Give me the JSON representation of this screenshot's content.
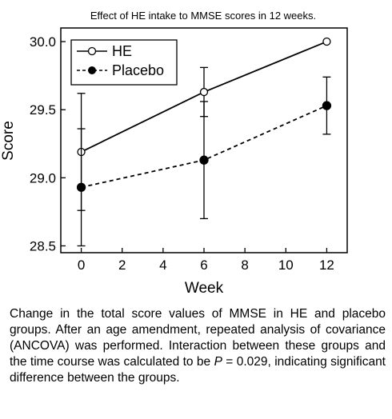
{
  "chart_data": {
    "type": "line",
    "title": "Effect of HE intake to MMSE scores in 12 weeks.",
    "xlabel": "Week",
    "ylabel": "Score",
    "xlim": [
      -1,
      13
    ],
    "ylim": [
      28.45,
      30.1
    ],
    "x_ticks": [
      0,
      2,
      4,
      6,
      8,
      10,
      12
    ],
    "y_ticks": [
      "28.5",
      "29.0",
      "29.5",
      "30.0"
    ],
    "legend_position": "top-left",
    "series": [
      {
        "name": "HE",
        "marker": "open-circle",
        "line_style": "solid",
        "x": [
          0,
          6,
          12
        ],
        "y": [
          29.19,
          29.63,
          30.0
        ],
        "error": [
          [
            28.76,
            29.62
          ],
          [
            29.45,
            29.81
          ],
          null
        ]
      },
      {
        "name": "Placebo",
        "marker": "filled-circle",
        "line_style": "dashed",
        "x": [
          0,
          6,
          12
        ],
        "y": [
          28.93,
          29.13,
          29.53
        ],
        "error": [
          [
            28.5,
            29.36
          ],
          [
            28.7,
            29.56
          ],
          [
            29.32,
            29.74
          ]
        ]
      }
    ]
  },
  "caption": {
    "text_before": "Change in the total score values of MMSE in HE and placebo groups. After an age amendment, repeated analysis of covariance (ANCOVA) was performed. Interaction between these groups and the time course was calculated to be ",
    "p_symbol": "P",
    "text_after": " = 0.029, indicating significant difference between the groups."
  }
}
